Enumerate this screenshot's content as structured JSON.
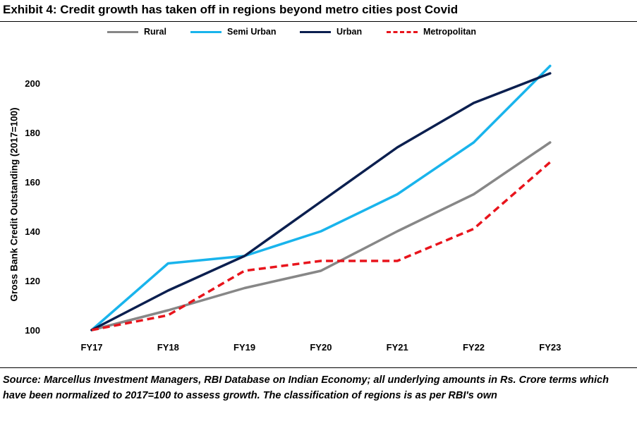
{
  "title": "Exhibit 4: Credit growth has taken off in regions beyond metro cities post Covid",
  "source_note": "Source: Marcellus Investment Managers, RBI Database on Indian Economy; all underlying amounts in Rs. Crore terms which have been normalized to 2017=100 to assess growth. The classification of regions is as per RBI's own",
  "chart_data": {
    "type": "line",
    "title": "Exhibit 4: Credit growth has taken off in regions beyond metro cities post Covid",
    "xlabel": "",
    "ylabel": "Gross Bank Credit Outstanding (2017=100)",
    "categories": [
      "FY17",
      "FY18",
      "FY19",
      "FY20",
      "FY21",
      "FY22",
      "FY23"
    ],
    "yticks": [
      "100",
      "120",
      "140",
      "160",
      "180",
      "200"
    ],
    "ylim": [
      100,
      210
    ],
    "grid": false,
    "legend": "top",
    "series": [
      {
        "name": "Rural",
        "color": "#878787",
        "dashed": false,
        "values": [
          100,
          108,
          117,
          124,
          140,
          155,
          176
        ]
      },
      {
        "name": "Semi Urban",
        "color": "#19b4ec",
        "dashed": false,
        "values": [
          100,
          127,
          130,
          140,
          155,
          176,
          207
        ]
      },
      {
        "name": "Urban",
        "color": "#0b1f4f",
        "dashed": false,
        "values": [
          100,
          116,
          130,
          152,
          174,
          192,
          204
        ]
      },
      {
        "name": "Metropolitan",
        "color": "#e8141c",
        "dashed": true,
        "values": [
          100,
          106,
          124,
          128,
          128,
          141,
          168
        ]
      }
    ]
  }
}
